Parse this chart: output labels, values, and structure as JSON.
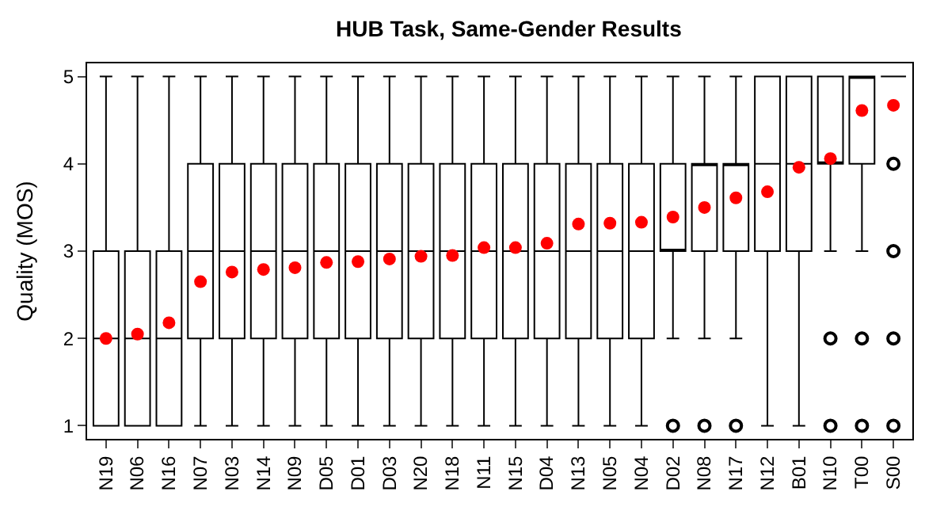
{
  "chart_data": {
    "type": "box",
    "title": "HUB Task, Same-Gender Results",
    "ylabel": "Quality (MOS)",
    "categories": [
      "N19",
      "N06",
      "N16",
      "N07",
      "N03",
      "N14",
      "N09",
      "D05",
      "D01",
      "D03",
      "N20",
      "N18",
      "N11",
      "N15",
      "D04",
      "N13",
      "N05",
      "N04",
      "D02",
      "N08",
      "N17",
      "N12",
      "B01",
      "N10",
      "T00",
      "S00"
    ],
    "boxes": [
      {
        "low": 1,
        "q1": 1,
        "median": 2,
        "q3": 3,
        "high": 5,
        "mean": 2.0
      },
      {
        "low": 1,
        "q1": 1,
        "median": 2,
        "q3": 3,
        "high": 5,
        "mean": 2.05
      },
      {
        "low": 1,
        "q1": 1,
        "median": 2,
        "q3": 3,
        "high": 5,
        "mean": 2.18
      },
      {
        "low": 1,
        "q1": 2,
        "median": 3,
        "q3": 4,
        "high": 5,
        "mean": 2.65
      },
      {
        "low": 1,
        "q1": 2,
        "median": 3,
        "q3": 4,
        "high": 5,
        "mean": 2.76
      },
      {
        "low": 1,
        "q1": 2,
        "median": 3,
        "q3": 4,
        "high": 5,
        "mean": 2.79
      },
      {
        "low": 1,
        "q1": 2,
        "median": 3,
        "q3": 4,
        "high": 5,
        "mean": 2.81
      },
      {
        "low": 1,
        "q1": 2,
        "median": 3,
        "q3": 4,
        "high": 5,
        "mean": 2.87
      },
      {
        "low": 1,
        "q1": 2,
        "median": 3,
        "q3": 4,
        "high": 5,
        "mean": 2.88
      },
      {
        "low": 1,
        "q1": 2,
        "median": 3,
        "q3": 4,
        "high": 5,
        "mean": 2.91
      },
      {
        "low": 1,
        "q1": 2,
        "median": 3,
        "q3": 4,
        "high": 5,
        "mean": 2.94
      },
      {
        "low": 1,
        "q1": 2,
        "median": 3,
        "q3": 4,
        "high": 5,
        "mean": 2.95
      },
      {
        "low": 1,
        "q1": 2,
        "median": 3,
        "q3": 4,
        "high": 5,
        "mean": 3.04
      },
      {
        "low": 1,
        "q1": 2,
        "median": 3,
        "q3": 4,
        "high": 5,
        "mean": 3.04
      },
      {
        "low": 1,
        "q1": 2,
        "median": 3,
        "q3": 4,
        "high": 5,
        "mean": 3.09
      },
      {
        "low": 1,
        "q1": 2,
        "median": 3,
        "q3": 4,
        "high": 5,
        "mean": 3.31
      },
      {
        "low": 1,
        "q1": 2,
        "median": 3,
        "q3": 4,
        "high": 5,
        "mean": 3.32
      },
      {
        "low": 1,
        "q1": 2,
        "median": 3,
        "q3": 4,
        "high": 5,
        "mean": 3.33
      },
      {
        "low": 2,
        "q1": 3,
        "median": 3,
        "q3": 4,
        "high": 5,
        "mean": 3.39,
        "outliers": [
          1
        ]
      },
      {
        "low": 2,
        "q1": 3,
        "median": 4,
        "q3": 4,
        "high": 5,
        "mean": 3.5,
        "outliers": [
          1
        ]
      },
      {
        "low": 2,
        "q1": 3,
        "median": 4,
        "q3": 4,
        "high": 5,
        "mean": 3.61,
        "outliers": [
          1
        ]
      },
      {
        "low": 1,
        "q1": 3,
        "median": 4,
        "q3": 5,
        "high": 5,
        "mean": 3.68
      },
      {
        "low": 1,
        "q1": 3,
        "median": 4,
        "q3": 5,
        "high": 5,
        "mean": 3.96
      },
      {
        "low": 3,
        "q1": 4,
        "median": 4,
        "q3": 5,
        "high": 5,
        "mean": 4.06,
        "outliers": [
          2,
          1
        ]
      },
      {
        "low": 3,
        "q1": 4,
        "median": 5,
        "q3": 5,
        "high": 5,
        "mean": 4.61,
        "outliers": [
          2,
          1
        ]
      },
      {
        "low": 5,
        "q1": 5,
        "median": 5,
        "q3": 5,
        "high": 5,
        "mean": 4.67,
        "outliers": [
          4,
          3,
          2,
          1
        ]
      }
    ],
    "ylim": [
      0.85,
      5.15
    ],
    "yticks": [
      1,
      2,
      3,
      4,
      5
    ]
  }
}
